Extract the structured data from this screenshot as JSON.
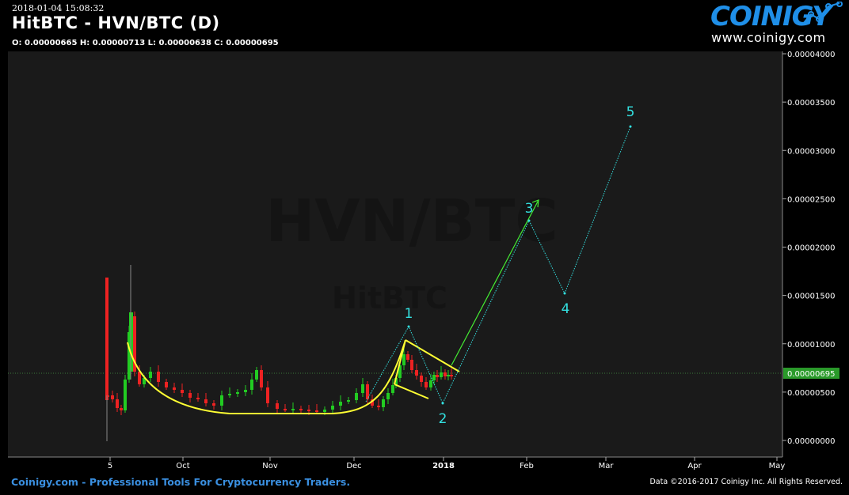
{
  "header": {
    "timestamp": "2018-01-04 15:08:32",
    "title": "HitBTC - HVN/BTC (D)",
    "ohlc": "O: 0.00000665 H: 0.00000713 L: 0.00000638 C: 0.00000695"
  },
  "logo": {
    "name": "COINIGY",
    "url": "www.coinigy.com",
    "color": "#1f8fe8"
  },
  "footer": {
    "left": "Coinigy.com - Professional Tools For Cryptocurrency Traders.",
    "right": "Data ©2016-2017 Coinigy Inc. All Rights Reserved."
  },
  "chart_data": {
    "type": "candlestick",
    "watermark_main": "HVN/BTC",
    "watermark_sub": "HitBTC",
    "price_axis": {
      "ylim": [
        0,
        4e-05
      ],
      "ticks": [
        "0.00000000",
        "0.00000500",
        "0.00001000",
        "0.00001500",
        "0.00002000",
        "0.00002500",
        "0.00003000",
        "0.00003500",
        "0.00004000"
      ],
      "current_price_label": "0.00000695",
      "current_price": 6.95e-06,
      "current_price_color": "#2a9a2a"
    },
    "time_axis": {
      "labels": [
        "5",
        "Oct",
        "Nov",
        "Dec",
        "2018",
        "Feb",
        "Mar",
        "Apr",
        "May"
      ],
      "bold_label": "2018"
    },
    "colors": {
      "up": "#22cc22",
      "down": "#ee2222",
      "projection": "#33e0e0",
      "pattern": "#ffff33",
      "arrow": "#44ee33",
      "grid": "#444444",
      "plot_bg": "#1a1a1a"
    },
    "elliott_labels": [
      "1",
      "2",
      "3",
      "4",
      "5"
    ],
    "elliott_waves": [
      {
        "label": "1",
        "price": 1.17e-05
      },
      {
        "label": "2",
        "price": 3.7e-06
      },
      {
        "label": "3",
        "price": 2.26e-05
      },
      {
        "label": "4",
        "price": 1.52e-05
      },
      {
        "label": "5",
        "price": 3.23e-05
      }
    ],
    "annotations": [
      "rounded bottom (cup)",
      "falling wedge flag",
      "breakout arrow"
    ],
    "grid": false
  }
}
